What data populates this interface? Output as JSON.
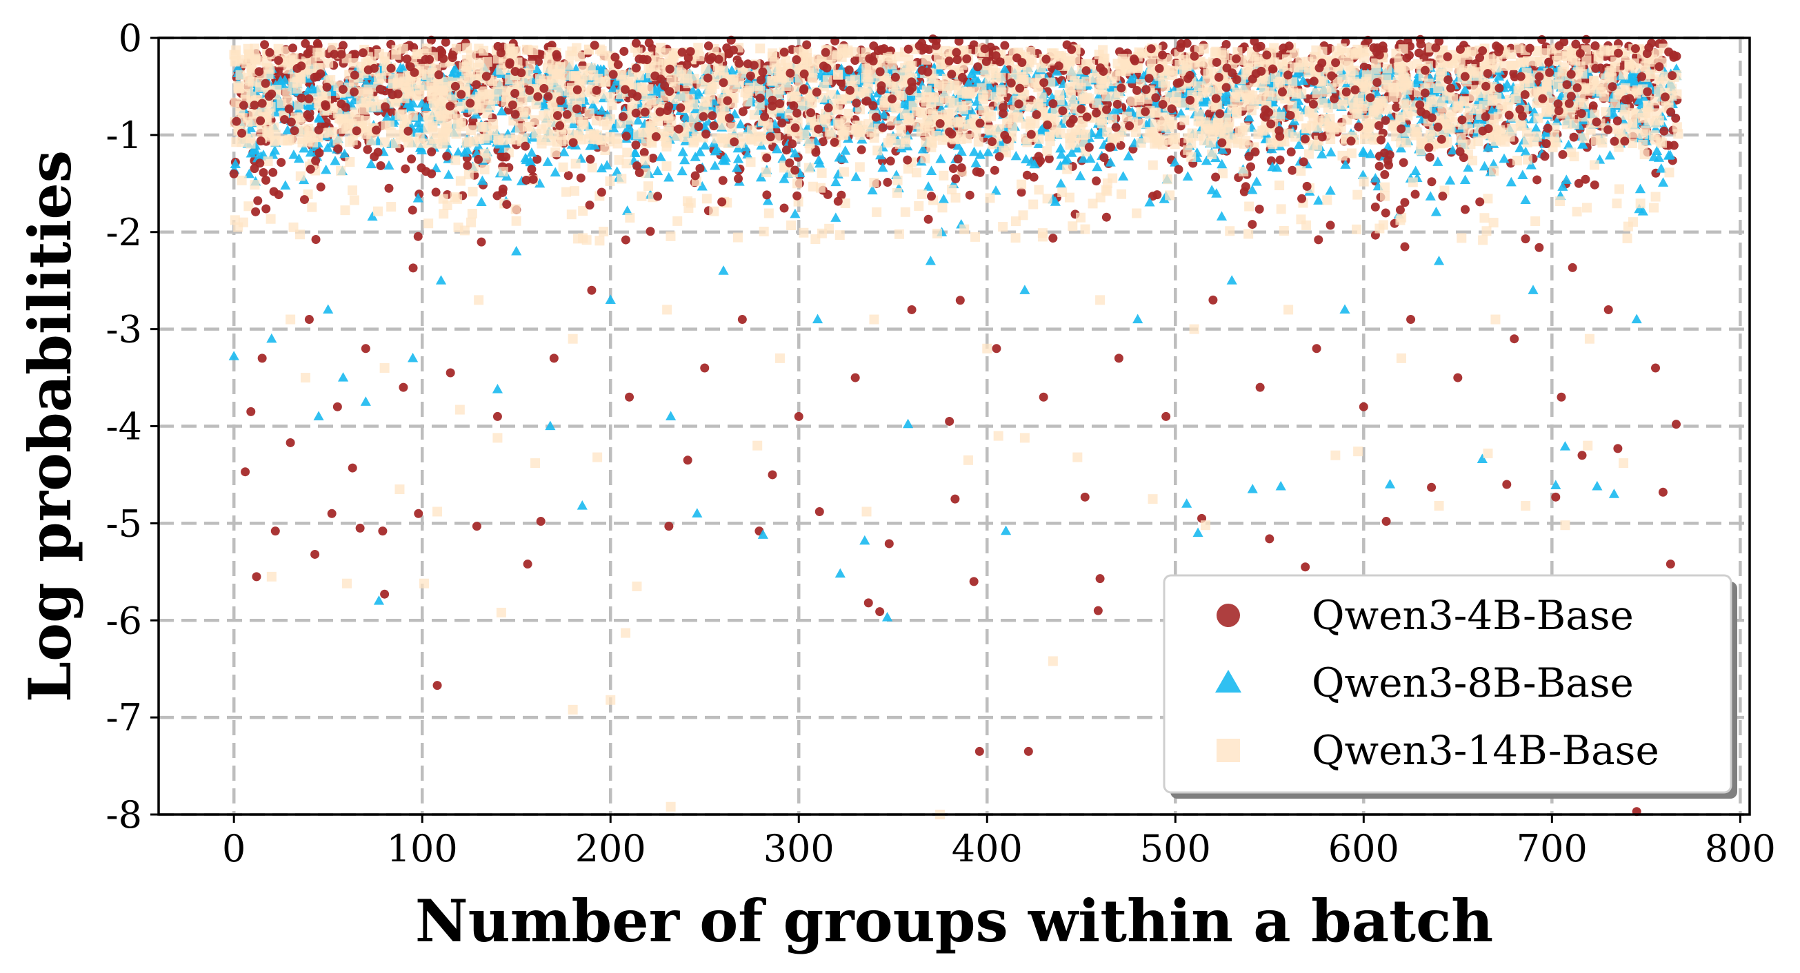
{
  "chart_data": {
    "type": "scatter",
    "title": "",
    "xlabel": "Number of groups within a batch",
    "ylabel": "Log probabilities",
    "xlim": [
      -40,
      805
    ],
    "ylim": [
      -8,
      0
    ],
    "xticks": [
      0,
      100,
      200,
      300,
      400,
      500,
      600,
      700,
      800
    ],
    "yticks": [
      0,
      -1,
      -2,
      -3,
      -4,
      -5,
      -6,
      -7,
      -8
    ],
    "xtick_labels": [
      "0",
      "100",
      "200",
      "300",
      "400",
      "500",
      "600",
      "700",
      "800"
    ],
    "ytick_labels": [
      "0",
      "-1",
      "-2",
      "-3",
      "-4",
      "-5",
      "-6",
      "-7",
      "-8"
    ],
    "grid": true,
    "legend_position": "bottom-right",
    "x_range_of_points": [
      0,
      767
    ],
    "series": [
      {
        "name": "Qwen3-4B-Base",
        "marker": "circle",
        "color": "#a52a2a",
        "points": [
          [
            0,
            -1.4
          ],
          [
            6,
            -4.47
          ],
          [
            9,
            -3.85
          ],
          [
            12,
            -5.55
          ],
          [
            22,
            -5.08
          ],
          [
            30,
            -4.17
          ],
          [
            43,
            -5.32
          ],
          [
            52,
            -4.9
          ],
          [
            63,
            -4.43
          ],
          [
            67,
            -5.05
          ],
          [
            79,
            -5.08
          ],
          [
            80,
            -5.73
          ],
          [
            98,
            -4.9
          ],
          [
            108,
            -6.67
          ],
          [
            129,
            -5.03
          ],
          [
            156,
            -5.42
          ],
          [
            163,
            -4.98
          ],
          [
            231,
            -5.03
          ],
          [
            241,
            -4.35
          ],
          [
            279,
            -5.08
          ],
          [
            286,
            -4.5
          ],
          [
            311,
            -4.88
          ],
          [
            337,
            -5.82
          ],
          [
            343,
            -5.91
          ],
          [
            348,
            -5.21
          ],
          [
            383,
            -4.75
          ],
          [
            393,
            -5.6
          ],
          [
            396,
            -7.35
          ],
          [
            422,
            -7.35
          ],
          [
            452,
            -4.73
          ],
          [
            459,
            -5.9
          ],
          [
            460,
            -5.57
          ],
          [
            514,
            -4.95
          ],
          [
            550,
            -5.16
          ],
          [
            569,
            -5.45
          ],
          [
            612,
            -4.98
          ],
          [
            636,
            -4.63
          ],
          [
            676,
            -4.6
          ],
          [
            702,
            -4.73
          ],
          [
            716,
            -4.3
          ],
          [
            735,
            -4.23
          ],
          [
            745,
            -7.97
          ],
          [
            759,
            -4.68
          ],
          [
            763,
            -5.42
          ],
          [
            766,
            -3.98
          ],
          [
            15,
            -3.3
          ],
          [
            40,
            -2.9
          ],
          [
            55,
            -3.8
          ],
          [
            70,
            -3.2
          ],
          [
            90,
            -3.6
          ],
          [
            115,
            -3.45
          ],
          [
            140,
            -3.9
          ],
          [
            170,
            -3.3
          ],
          [
            190,
            -2.6
          ],
          [
            210,
            -3.7
          ],
          [
            250,
            -3.4
          ],
          [
            270,
            -2.9
          ],
          [
            300,
            -3.9
          ],
          [
            330,
            -3.5
          ],
          [
            360,
            -2.8
          ],
          [
            380,
            -3.95
          ],
          [
            405,
            -3.2
          ],
          [
            430,
            -3.7
          ],
          [
            470,
            -3.3
          ],
          [
            495,
            -3.9
          ],
          [
            520,
            -2.7
          ],
          [
            545,
            -3.6
          ],
          [
            575,
            -3.2
          ],
          [
            600,
            -3.8
          ],
          [
            625,
            -2.9
          ],
          [
            650,
            -3.5
          ],
          [
            680,
            -3.1
          ],
          [
            705,
            -3.7
          ],
          [
            730,
            -2.8
          ],
          [
            755,
            -3.4
          ]
        ]
      },
      {
        "name": "Qwen3-8B-Base",
        "marker": "triangle",
        "color": "#1ab9f0",
        "points": [
          [
            0,
            -3.28
          ],
          [
            20,
            -3.1
          ],
          [
            45,
            -3.9
          ],
          [
            58,
            -3.5
          ],
          [
            70,
            -3.75
          ],
          [
            77,
            -5.8
          ],
          [
            95,
            -3.3
          ],
          [
            140,
            -3.62
          ],
          [
            168,
            -4.0
          ],
          [
            185,
            -4.82
          ],
          [
            232,
            -3.9
          ],
          [
            246,
            -4.9
          ],
          [
            281,
            -5.12
          ],
          [
            322,
            -5.52
          ],
          [
            335,
            -5.18
          ],
          [
            347,
            -5.97
          ],
          [
            358,
            -3.98
          ],
          [
            410,
            -5.08
          ],
          [
            506,
            -4.8
          ],
          [
            512,
            -5.1
          ],
          [
            541,
            -4.65
          ],
          [
            556,
            -4.62
          ],
          [
            614,
            -4.6
          ],
          [
            663,
            -4.34
          ],
          [
            702,
            -4.61
          ],
          [
            707,
            -4.21
          ],
          [
            724,
            -4.62
          ],
          [
            733,
            -4.7
          ],
          [
            50,
            -2.8
          ],
          [
            110,
            -2.5
          ],
          [
            150,
            -2.2
          ],
          [
            200,
            -2.7
          ],
          [
            260,
            -2.4
          ],
          [
            310,
            -2.9
          ],
          [
            370,
            -2.3
          ],
          [
            420,
            -2.6
          ],
          [
            480,
            -2.9
          ],
          [
            530,
            -2.5
          ],
          [
            590,
            -2.8
          ],
          [
            640,
            -2.3
          ],
          [
            690,
            -2.6
          ],
          [
            745,
            -2.9
          ]
        ]
      },
      {
        "name": "Qwen3-14B-Base",
        "marker": "square",
        "color": "#ffe4c4",
        "points": [
          [
            5,
            -1.9
          ],
          [
            20,
            -5.55
          ],
          [
            38,
            -3.5
          ],
          [
            60,
            -5.62
          ],
          [
            88,
            -4.65
          ],
          [
            101,
            -5.62
          ],
          [
            108,
            -4.88
          ],
          [
            120,
            -3.83
          ],
          [
            140,
            -4.12
          ],
          [
            142,
            -5.92
          ],
          [
            160,
            -4.38
          ],
          [
            180,
            -6.92
          ],
          [
            193,
            -4.32
          ],
          [
            200,
            -6.82
          ],
          [
            208,
            -6.13
          ],
          [
            214,
            -5.65
          ],
          [
            232,
            -7.92
          ],
          [
            278,
            -4.2
          ],
          [
            336,
            -4.88
          ],
          [
            375,
            -8.0
          ],
          [
            390,
            -4.35
          ],
          [
            406,
            -4.1
          ],
          [
            420,
            -4.12
          ],
          [
            435,
            -6.42
          ],
          [
            448,
            -4.32
          ],
          [
            488,
            -4.75
          ],
          [
            516,
            -5.02
          ],
          [
            585,
            -4.3
          ],
          [
            597,
            -4.26
          ],
          [
            640,
            -4.82
          ],
          [
            666,
            -4.28
          ],
          [
            686,
            -4.82
          ],
          [
            707,
            -5.02
          ],
          [
            719,
            -4.2
          ],
          [
            738,
            -4.38
          ],
          [
            30,
            -2.9
          ],
          [
            80,
            -3.4
          ],
          [
            130,
            -2.7
          ],
          [
            180,
            -3.1
          ],
          [
            230,
            -2.8
          ],
          [
            290,
            -3.3
          ],
          [
            340,
            -2.9
          ],
          [
            400,
            -3.2
          ],
          [
            460,
            -2.7
          ],
          [
            510,
            -3.0
          ],
          [
            560,
            -2.8
          ],
          [
            620,
            -3.3
          ],
          [
            670,
            -2.9
          ],
          [
            720,
            -3.1
          ]
        ]
      }
    ],
    "dense_band_description_ranges": {
      "Qwen3-4B-Base": [
        -4,
        0
      ],
      "Qwen3-8B-Base": [
        -3,
        -0.2
      ],
      "Qwen3-14B-Base": [
        -1.1,
        -0.1
      ]
    }
  }
}
